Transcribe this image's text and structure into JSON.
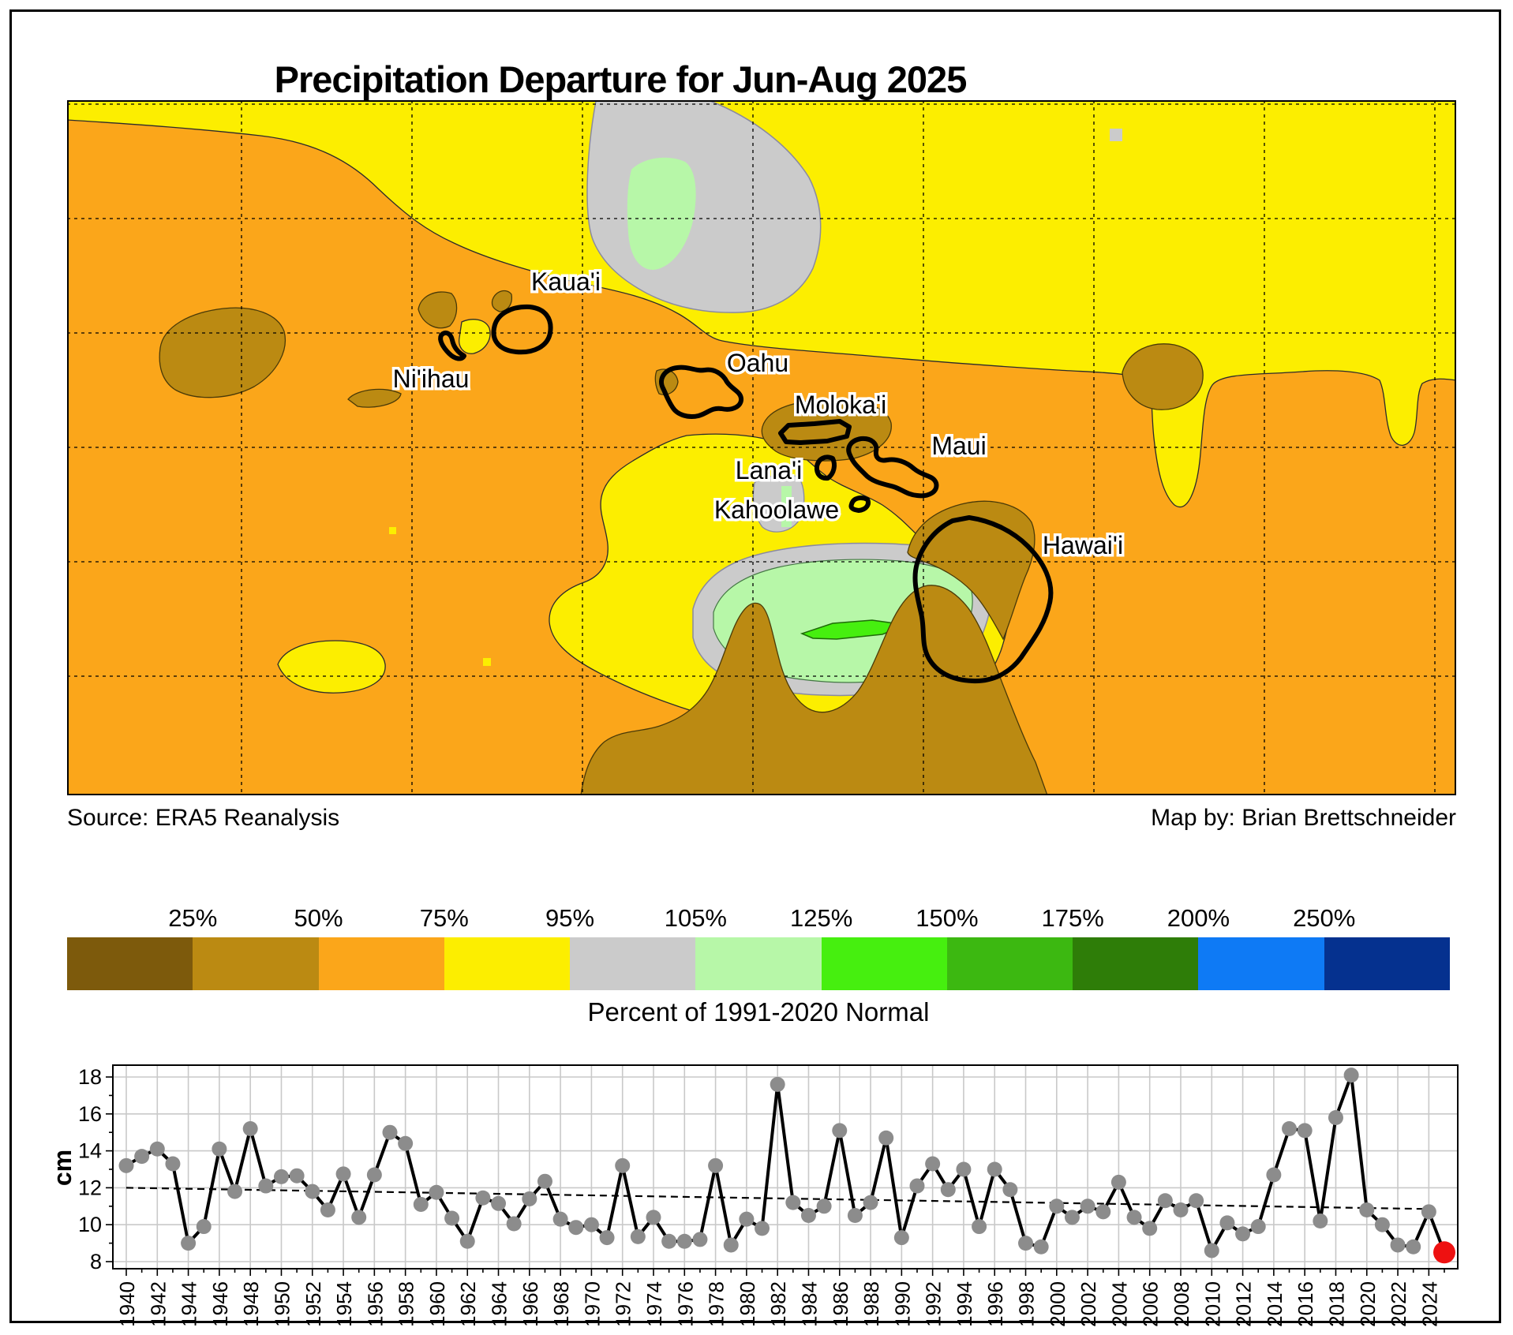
{
  "title": "Precipitation Departure for Jun-Aug 2025",
  "map": {
    "source": "Source: ERA5 Reanalysis",
    "credit": "Map by: Brian Brettschneider",
    "island_labels": [
      "Kaua'i",
      "Ni'ihau",
      "Oahu",
      "Moloka'i",
      "Lana'i",
      "Maui",
      "Kahoolawe",
      "Hawai'i"
    ]
  },
  "legend": {
    "caption": "Percent of 1991-2020 Normal",
    "boundary_labels": [
      "25%",
      "50%",
      "75%",
      "95%",
      "105%",
      "125%",
      "150%",
      "175%",
      "200%",
      "250%"
    ],
    "colors": [
      "#7d5a0c",
      "#bb8a12",
      "#fba61a",
      "#fcee00",
      "#cbcbcb",
      "#b7f7a8",
      "#46ef0f",
      "#3cb811",
      "#2e7d08",
      "#0e7af5",
      "#05318f"
    ]
  },
  "chart_data": {
    "type": "line",
    "ylabel": "cm",
    "x_start": 1940,
    "x_end": 2025,
    "x_tick_step": 2,
    "ylim": [
      7.6,
      18.6
    ],
    "yticks": [
      8,
      10,
      12,
      14,
      16,
      18
    ],
    "values": [
      13.2,
      13.7,
      14.1,
      13.3,
      9.0,
      9.9,
      14.1,
      11.8,
      15.2,
      12.1,
      12.6,
      12.65,
      11.8,
      10.8,
      12.75,
      10.4,
      12.7,
      15.0,
      14.4,
      11.1,
      11.75,
      10.35,
      9.1,
      11.45,
      11.15,
      10.05,
      11.4,
      12.35,
      10.3,
      9.85,
      10.0,
      9.3,
      13.2,
      9.35,
      10.4,
      9.1,
      9.1,
      9.2,
      13.2,
      8.9,
      10.3,
      9.8,
      17.6,
      11.2,
      10.5,
      11.0,
      15.1,
      10.5,
      11.2,
      14.7,
      9.3,
      12.1,
      13.3,
      11.9,
      13.0,
      9.9,
      13.0,
      11.9,
      9.0,
      8.8,
      11.0,
      10.4,
      11.0,
      10.7,
      12.3,
      10.4,
      9.8,
      11.3,
      10.8,
      11.3,
      8.6,
      10.1,
      9.5,
      9.9,
      12.7,
      15.2,
      15.1,
      10.2,
      15.8,
      18.1,
      10.8,
      10.0,
      8.9,
      8.8,
      10.7,
      8.5
    ],
    "trend_line": {
      "x1": 1940,
      "y1": 12.0,
      "x2": 2024,
      "y2": 10.85,
      "style": "dashed"
    },
    "line_color": "#000000",
    "point_color": "#8c8c8c",
    "last_point_color": "#ee1111",
    "grid": true,
    "legend_position": "none"
  }
}
